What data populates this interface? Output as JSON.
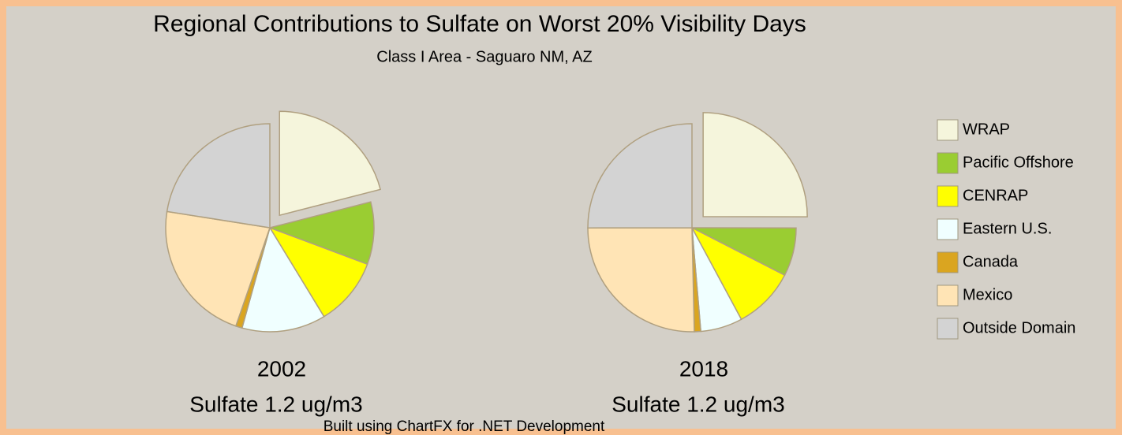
{
  "chart_data": {
    "type": "pie",
    "title": "Regional Contributions to Sulfate on Worst 20% Visibility Days",
    "subtitle": "Class I Area - Saguaro NM, AZ",
    "categories": [
      "WRAP",
      "Pacific Offshore",
      "CENRAP",
      "Eastern U.S.",
      "Canada",
      "Mexico",
      "Outside Domain"
    ],
    "colors": [
      "#f5f5dc",
      "#9acd32",
      "#ffff00",
      "#f0ffff",
      "#daa520",
      "#ffe4b5",
      "#d3d3d3"
    ],
    "series": [
      {
        "name": "2002",
        "label": "Sulfate 1.2 ug/m3",
        "values": [
          21,
          9.7,
          10.6,
          13,
          1,
          22.2,
          22.5
        ]
      },
      {
        "name": "2018",
        "label": "Sulfate 1.2 ug/m3",
        "values": [
          25,
          7.5,
          9.6,
          6.5,
          1,
          25.3,
          25
        ]
      }
    ],
    "legend": "right"
  },
  "footer": "Built using ChartFX for .NET Development"
}
